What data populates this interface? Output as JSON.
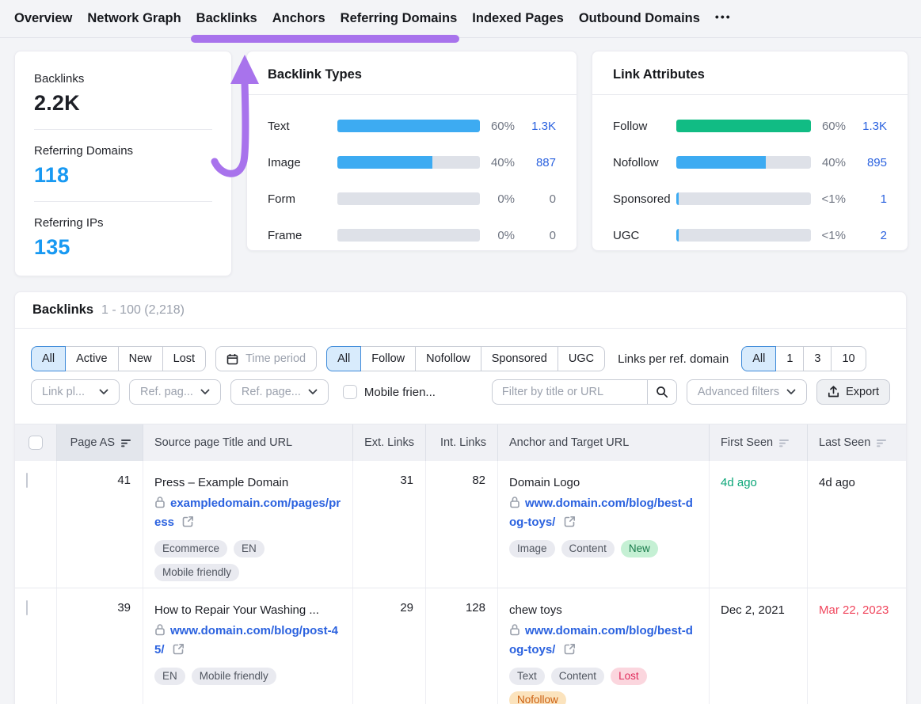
{
  "colors": {
    "accent_purple": "#a873ec",
    "link_blue": "#2b62df",
    "metric_blue": "#1899f2",
    "bar_blue": "#3dabf2",
    "bar_green": "#11bc84",
    "seen_green": "#0ba678",
    "seen_red": "#f0455c"
  },
  "nav": {
    "items": [
      "Overview",
      "Network Graph",
      "Backlinks",
      "Anchors",
      "Referring Domains",
      "Indexed Pages",
      "Outbound Domains"
    ],
    "underline_from": 2,
    "underline_to": 4,
    "active": "Backlinks",
    "more_icon": "more-icon",
    "more_label": "•••"
  },
  "summary": {
    "metrics": [
      {
        "label": "Backlinks",
        "value": "2.2K",
        "color": "dark"
      },
      {
        "label": "Referring Domains",
        "value": "118",
        "color": "blue"
      },
      {
        "label": "Referring IPs",
        "value": "135",
        "color": "blue"
      }
    ]
  },
  "chart_data": [
    {
      "type": "bar",
      "title": "Backlink Types",
      "orientation": "horizontal",
      "categories": [
        "Text",
        "Image",
        "Form",
        "Frame"
      ],
      "values": [
        60,
        40,
        0,
        0
      ],
      "max_value": 60,
      "percent_labels": [
        "60%",
        "40%",
        "0%",
        "0%"
      ],
      "count_labels": [
        "1.3K",
        "887",
        "0",
        "0"
      ],
      "bar_colors": [
        "#3dabf2",
        "#3dabf2",
        "#3dabf2",
        "#3dabf2"
      ],
      "legend": "none",
      "grid": "off"
    },
    {
      "type": "bar",
      "title": "Link Attributes",
      "orientation": "horizontal",
      "categories": [
        "Follow",
        "Nofollow",
        "Sponsored",
        "UGC"
      ],
      "values": [
        60,
        40,
        0.5,
        0.5
      ],
      "max_value": 60,
      "percent_labels": [
        "60%",
        "40%",
        "<1%",
        "<1%"
      ],
      "count_labels": [
        "1.3K",
        "895",
        "1",
        "2"
      ],
      "bar_colors": [
        "#11bc84",
        "#3dabf2",
        "#3dabf2",
        "#3dabf2"
      ],
      "legend": "none",
      "grid": "off"
    }
  ],
  "table": {
    "title": "Backlinks",
    "range": "1 - 100 (2,218)",
    "filters": {
      "status_group": {
        "options": [
          "All",
          "Active",
          "New",
          "Lost"
        ],
        "selected": "All"
      },
      "time_period": {
        "label": "Time period",
        "icon": "calendar-icon"
      },
      "attr_group": {
        "options": [
          "All",
          "Follow",
          "Nofollow",
          "Sponsored",
          "UGC"
        ],
        "selected": "All"
      },
      "links_per_domain_label": "Links per ref. domain",
      "links_group": {
        "options": [
          "All",
          "1",
          "3",
          "10"
        ],
        "selected": "All"
      },
      "dropdowns": [
        {
          "label": "Link pl...",
          "icon": "chevron-down-icon"
        },
        {
          "label": "Ref. pag...",
          "icon": "chevron-down-icon"
        },
        {
          "label": "Ref. page...",
          "icon": "chevron-down-icon"
        }
      ],
      "mobile_checkbox_label": "Mobile frien...",
      "search": {
        "placeholder": "Filter by title or URL",
        "icon": "search-icon"
      },
      "advanced_filters": {
        "label": "Advanced filters",
        "icon": "chevron-down-icon"
      },
      "export": {
        "label": "Export",
        "icon": "export-icon"
      }
    },
    "columns": [
      {
        "label": "",
        "type": "checkbox"
      },
      {
        "label": "Page AS",
        "sort_icon": true,
        "active": true
      },
      {
        "label": "Source page Title and URL"
      },
      {
        "label": "Ext. Links",
        "align": "right"
      },
      {
        "label": "Int. Links",
        "align": "right"
      },
      {
        "label": "Anchor and Target URL"
      },
      {
        "label": "First Seen",
        "sort_icon": true
      },
      {
        "label": "Last Seen",
        "sort_icon": true
      }
    ],
    "link_icons": [
      "lock-icon",
      "external-link-icon"
    ],
    "rows": [
      {
        "page_as": "41",
        "source_title": "Press – Example Domain",
        "source_url": "exampledomain.com/pages/press",
        "source_tags": [
          {
            "label": "Ecommerce",
            "style": "gray"
          },
          {
            "label": "EN",
            "style": "gray"
          },
          {
            "label": "Mobile friendly",
            "style": "gray"
          }
        ],
        "ext_links": "31",
        "int_links": "82",
        "anchor": "Domain Logo",
        "target_url": "www.domain.com/blog/best-dog-toys/",
        "anchor_tags": [
          {
            "label": "Image",
            "style": "gray"
          },
          {
            "label": "Content",
            "style": "gray"
          },
          {
            "label": "New",
            "style": "green"
          }
        ],
        "first_seen": {
          "text": "4d ago",
          "color": "green"
        },
        "last_seen": {
          "text": "4d ago",
          "color": "dark"
        }
      },
      {
        "page_as": "39",
        "source_title": "How to Repair Your Washing ...",
        "source_url": "www.domain.com/blog/post-45/",
        "source_tags": [
          {
            "label": "EN",
            "style": "gray"
          },
          {
            "label": "Mobile friendly",
            "style": "gray"
          }
        ],
        "ext_links": "29",
        "int_links": "128",
        "anchor": "chew toys",
        "target_url": "www.domain.com/blog/best-dog-toys/",
        "anchor_tags": [
          {
            "label": "Text",
            "style": "gray"
          },
          {
            "label": "Content",
            "style": "gray"
          },
          {
            "label": "Lost",
            "style": "red"
          },
          {
            "label": "Nofollow",
            "style": "orange"
          }
        ],
        "first_seen": {
          "text": "Dec 2, 2021",
          "color": "dark"
        },
        "last_seen": {
          "text": "Mar 22, 2023",
          "color": "red"
        }
      }
    ]
  }
}
